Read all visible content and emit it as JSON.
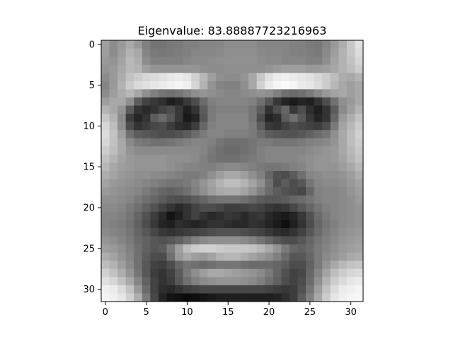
{
  "chart_data": {
    "type": "heatmap",
    "title": "Eigenvalue: 83.88887723216963",
    "colormap": "gray",
    "x_ticks": [
      0,
      5,
      10,
      15,
      20,
      25,
      30
    ],
    "y_ticks": [
      0,
      5,
      10,
      15,
      20,
      25,
      30
    ],
    "grid_shape": [
      32,
      32
    ],
    "grid": [
      [
        0.62,
        0.55,
        0.6,
        0.66,
        0.6,
        0.5,
        0.45,
        0.45,
        0.47,
        0.48,
        0.5,
        0.5,
        0.52,
        0.52,
        0.52,
        0.55,
        0.55,
        0.55,
        0.55,
        0.52,
        0.52,
        0.52,
        0.52,
        0.5,
        0.5,
        0.48,
        0.47,
        0.52,
        0.6,
        0.68,
        0.78,
        0.88
      ],
      [
        0.62,
        0.55,
        0.62,
        0.7,
        0.66,
        0.52,
        0.48,
        0.47,
        0.48,
        0.49,
        0.5,
        0.52,
        0.53,
        0.53,
        0.54,
        0.56,
        0.56,
        0.56,
        0.56,
        0.54,
        0.53,
        0.53,
        0.52,
        0.51,
        0.5,
        0.49,
        0.48,
        0.54,
        0.62,
        0.7,
        0.78,
        0.86
      ],
      [
        0.6,
        0.58,
        0.64,
        0.72,
        0.68,
        0.55,
        0.5,
        0.5,
        0.5,
        0.5,
        0.52,
        0.54,
        0.54,
        0.55,
        0.56,
        0.57,
        0.57,
        0.57,
        0.57,
        0.55,
        0.54,
        0.54,
        0.52,
        0.52,
        0.52,
        0.5,
        0.5,
        0.56,
        0.64,
        0.7,
        0.76,
        0.84
      ],
      [
        0.58,
        0.6,
        0.66,
        0.72,
        0.7,
        0.62,
        0.58,
        0.58,
        0.58,
        0.58,
        0.58,
        0.58,
        0.56,
        0.55,
        0.55,
        0.56,
        0.56,
        0.56,
        0.56,
        0.56,
        0.58,
        0.6,
        0.62,
        0.62,
        0.62,
        0.6,
        0.6,
        0.62,
        0.66,
        0.7,
        0.74,
        0.8
      ],
      [
        0.55,
        0.6,
        0.68,
        0.76,
        0.8,
        0.84,
        0.86,
        0.88,
        0.9,
        0.92,
        0.9,
        0.82,
        0.72,
        0.62,
        0.56,
        0.55,
        0.55,
        0.58,
        0.66,
        0.78,
        0.88,
        0.92,
        0.94,
        0.92,
        0.9,
        0.88,
        0.84,
        0.8,
        0.74,
        0.68,
        0.66,
        0.7
      ],
      [
        0.52,
        0.6,
        0.7,
        0.8,
        0.86,
        0.88,
        0.9,
        0.92,
        0.94,
        0.96,
        0.94,
        0.84,
        0.7,
        0.58,
        0.52,
        0.5,
        0.5,
        0.56,
        0.66,
        0.82,
        0.92,
        0.96,
        0.98,
        0.96,
        0.92,
        0.9,
        0.86,
        0.8,
        0.72,
        0.66,
        0.62,
        0.66
      ],
      [
        0.55,
        0.62,
        0.68,
        0.72,
        0.66,
        0.56,
        0.5,
        0.46,
        0.44,
        0.46,
        0.5,
        0.56,
        0.58,
        0.56,
        0.54,
        0.52,
        0.52,
        0.54,
        0.56,
        0.58,
        0.56,
        0.5,
        0.44,
        0.42,
        0.44,
        0.48,
        0.54,
        0.6,
        0.64,
        0.66,
        0.62,
        0.66
      ],
      [
        0.62,
        0.66,
        0.66,
        0.56,
        0.36,
        0.26,
        0.22,
        0.18,
        0.12,
        0.15,
        0.22,
        0.3,
        0.42,
        0.5,
        0.52,
        0.52,
        0.52,
        0.52,
        0.5,
        0.44,
        0.34,
        0.22,
        0.14,
        0.1,
        0.14,
        0.12,
        0.2,
        0.3,
        0.44,
        0.56,
        0.6,
        0.66
      ],
      [
        0.7,
        0.66,
        0.58,
        0.36,
        0.2,
        0.16,
        0.2,
        0.26,
        0.3,
        0.22,
        0.12,
        0.2,
        0.36,
        0.48,
        0.5,
        0.5,
        0.5,
        0.5,
        0.46,
        0.36,
        0.2,
        0.3,
        0.4,
        0.22,
        0.3,
        0.18,
        0.12,
        0.2,
        0.36,
        0.54,
        0.62,
        0.7
      ],
      [
        0.78,
        0.7,
        0.54,
        0.24,
        0.14,
        0.2,
        0.36,
        0.42,
        0.34,
        0.22,
        0.1,
        0.14,
        0.34,
        0.48,
        0.52,
        0.52,
        0.52,
        0.52,
        0.46,
        0.3,
        0.14,
        0.18,
        0.36,
        0.44,
        0.34,
        0.22,
        0.14,
        0.2,
        0.4,
        0.6,
        0.68,
        0.76
      ],
      [
        0.84,
        0.74,
        0.56,
        0.3,
        0.2,
        0.24,
        0.28,
        0.3,
        0.24,
        0.18,
        0.16,
        0.24,
        0.4,
        0.5,
        0.52,
        0.52,
        0.52,
        0.52,
        0.48,
        0.36,
        0.22,
        0.2,
        0.26,
        0.3,
        0.28,
        0.26,
        0.24,
        0.3,
        0.48,
        0.64,
        0.72,
        0.8
      ],
      [
        0.86,
        0.76,
        0.62,
        0.44,
        0.36,
        0.34,
        0.32,
        0.3,
        0.3,
        0.32,
        0.36,
        0.42,
        0.48,
        0.52,
        0.52,
        0.5,
        0.5,
        0.5,
        0.48,
        0.42,
        0.36,
        0.34,
        0.32,
        0.32,
        0.34,
        0.38,
        0.42,
        0.46,
        0.56,
        0.66,
        0.74,
        0.82
      ],
      [
        0.84,
        0.76,
        0.66,
        0.54,
        0.48,
        0.46,
        0.44,
        0.44,
        0.46,
        0.48,
        0.5,
        0.52,
        0.52,
        0.5,
        0.46,
        0.44,
        0.44,
        0.44,
        0.46,
        0.48,
        0.48,
        0.46,
        0.46,
        0.46,
        0.48,
        0.5,
        0.52,
        0.54,
        0.58,
        0.66,
        0.74,
        0.8
      ],
      [
        0.8,
        0.74,
        0.66,
        0.58,
        0.54,
        0.54,
        0.54,
        0.54,
        0.54,
        0.54,
        0.54,
        0.54,
        0.52,
        0.48,
        0.44,
        0.42,
        0.42,
        0.44,
        0.46,
        0.5,
        0.52,
        0.52,
        0.52,
        0.52,
        0.52,
        0.54,
        0.56,
        0.58,
        0.6,
        0.66,
        0.72,
        0.78
      ],
      [
        0.76,
        0.7,
        0.64,
        0.6,
        0.58,
        0.58,
        0.58,
        0.58,
        0.56,
        0.56,
        0.56,
        0.54,
        0.5,
        0.46,
        0.44,
        0.44,
        0.44,
        0.46,
        0.48,
        0.5,
        0.52,
        0.52,
        0.52,
        0.52,
        0.54,
        0.56,
        0.58,
        0.58,
        0.6,
        0.64,
        0.7,
        0.76
      ],
      [
        0.72,
        0.66,
        0.62,
        0.6,
        0.58,
        0.58,
        0.58,
        0.58,
        0.56,
        0.54,
        0.52,
        0.52,
        0.5,
        0.5,
        0.52,
        0.54,
        0.54,
        0.52,
        0.5,
        0.48,
        0.46,
        0.46,
        0.48,
        0.5,
        0.52,
        0.56,
        0.58,
        0.58,
        0.58,
        0.62,
        0.66,
        0.72
      ],
      [
        0.68,
        0.64,
        0.6,
        0.58,
        0.56,
        0.56,
        0.54,
        0.54,
        0.52,
        0.5,
        0.48,
        0.48,
        0.5,
        0.56,
        0.62,
        0.66,
        0.66,
        0.62,
        0.56,
        0.5,
        0.4,
        0.32,
        0.3,
        0.36,
        0.44,
        0.52,
        0.54,
        0.56,
        0.56,
        0.58,
        0.62,
        0.68
      ],
      [
        0.64,
        0.6,
        0.58,
        0.56,
        0.54,
        0.52,
        0.5,
        0.48,
        0.46,
        0.46,
        0.48,
        0.52,
        0.58,
        0.64,
        0.7,
        0.74,
        0.74,
        0.7,
        0.64,
        0.56,
        0.44,
        0.3,
        0.36,
        0.3,
        0.34,
        0.46,
        0.52,
        0.54,
        0.54,
        0.56,
        0.6,
        0.64
      ],
      [
        0.6,
        0.58,
        0.56,
        0.54,
        0.52,
        0.48,
        0.44,
        0.4,
        0.38,
        0.4,
        0.44,
        0.5,
        0.56,
        0.62,
        0.66,
        0.68,
        0.68,
        0.64,
        0.58,
        0.5,
        0.42,
        0.36,
        0.32,
        0.3,
        0.28,
        0.4,
        0.5,
        0.52,
        0.52,
        0.54,
        0.58,
        0.62
      ],
      [
        0.56,
        0.56,
        0.54,
        0.52,
        0.48,
        0.44,
        0.4,
        0.36,
        0.32,
        0.3,
        0.32,
        0.36,
        0.4,
        0.44,
        0.46,
        0.46,
        0.46,
        0.44,
        0.4,
        0.36,
        0.34,
        0.34,
        0.36,
        0.4,
        0.42,
        0.46,
        0.5,
        0.52,
        0.52,
        0.54,
        0.56,
        0.6
      ],
      [
        0.54,
        0.54,
        0.52,
        0.48,
        0.44,
        0.38,
        0.32,
        0.26,
        0.2,
        0.16,
        0.2,
        0.26,
        0.3,
        0.3,
        0.28,
        0.24,
        0.24,
        0.26,
        0.28,
        0.26,
        0.22,
        0.2,
        0.22,
        0.28,
        0.34,
        0.4,
        0.46,
        0.5,
        0.52,
        0.54,
        0.56,
        0.58
      ],
      [
        0.52,
        0.52,
        0.5,
        0.46,
        0.4,
        0.32,
        0.24,
        0.16,
        0.08,
        0.12,
        0.2,
        0.26,
        0.2,
        0.16,
        0.18,
        0.22,
        0.2,
        0.16,
        0.2,
        0.22,
        0.16,
        0.12,
        0.1,
        0.14,
        0.22,
        0.32,
        0.42,
        0.48,
        0.52,
        0.54,
        0.56,
        0.58
      ],
      [
        0.52,
        0.5,
        0.48,
        0.44,
        0.38,
        0.3,
        0.22,
        0.14,
        0.12,
        0.18,
        0.16,
        0.14,
        0.16,
        0.2,
        0.2,
        0.18,
        0.16,
        0.16,
        0.2,
        0.18,
        0.14,
        0.1,
        0.06,
        0.12,
        0.2,
        0.3,
        0.4,
        0.46,
        0.5,
        0.54,
        0.56,
        0.58
      ],
      [
        0.54,
        0.52,
        0.5,
        0.46,
        0.4,
        0.34,
        0.28,
        0.22,
        0.2,
        0.22,
        0.24,
        0.26,
        0.28,
        0.3,
        0.32,
        0.32,
        0.32,
        0.3,
        0.28,
        0.26,
        0.22,
        0.18,
        0.16,
        0.2,
        0.26,
        0.34,
        0.42,
        0.48,
        0.52,
        0.56,
        0.58,
        0.6
      ],
      [
        0.58,
        0.56,
        0.52,
        0.48,
        0.42,
        0.38,
        0.34,
        0.32,
        0.34,
        0.38,
        0.44,
        0.5,
        0.54,
        0.56,
        0.56,
        0.56,
        0.56,
        0.54,
        0.5,
        0.46,
        0.4,
        0.34,
        0.3,
        0.3,
        0.34,
        0.4,
        0.46,
        0.5,
        0.54,
        0.58,
        0.6,
        0.62
      ],
      [
        0.62,
        0.6,
        0.56,
        0.5,
        0.44,
        0.38,
        0.34,
        0.36,
        0.48,
        0.62,
        0.74,
        0.8,
        0.82,
        0.82,
        0.8,
        0.78,
        0.78,
        0.78,
        0.76,
        0.72,
        0.66,
        0.58,
        0.48,
        0.4,
        0.38,
        0.42,
        0.48,
        0.52,
        0.56,
        0.6,
        0.62,
        0.64
      ],
      [
        0.68,
        0.64,
        0.58,
        0.52,
        0.44,
        0.36,
        0.3,
        0.3,
        0.44,
        0.6,
        0.66,
        0.62,
        0.6,
        0.64,
        0.7,
        0.72,
        0.72,
        0.68,
        0.64,
        0.6,
        0.56,
        0.5,
        0.42,
        0.34,
        0.34,
        0.4,
        0.48,
        0.54,
        0.58,
        0.62,
        0.66,
        0.68
      ],
      [
        0.74,
        0.7,
        0.62,
        0.54,
        0.44,
        0.34,
        0.26,
        0.24,
        0.3,
        0.4,
        0.46,
        0.44,
        0.42,
        0.44,
        0.46,
        0.46,
        0.46,
        0.44,
        0.42,
        0.42,
        0.42,
        0.4,
        0.36,
        0.3,
        0.3,
        0.38,
        0.48,
        0.58,
        0.66,
        0.72,
        0.76,
        0.78
      ],
      [
        0.82,
        0.76,
        0.68,
        0.58,
        0.46,
        0.34,
        0.24,
        0.2,
        0.26,
        0.36,
        0.48,
        0.56,
        0.62,
        0.66,
        0.66,
        0.64,
        0.62,
        0.6,
        0.58,
        0.54,
        0.48,
        0.4,
        0.32,
        0.26,
        0.28,
        0.4,
        0.52,
        0.64,
        0.74,
        0.8,
        0.84,
        0.86
      ],
      [
        0.88,
        0.84,
        0.76,
        0.66,
        0.52,
        0.38,
        0.26,
        0.2,
        0.24,
        0.34,
        0.44,
        0.5,
        0.54,
        0.56,
        0.58,
        0.58,
        0.58,
        0.56,
        0.54,
        0.5,
        0.44,
        0.38,
        0.3,
        0.26,
        0.3,
        0.42,
        0.56,
        0.7,
        0.8,
        0.86,
        0.9,
        0.92
      ],
      [
        0.94,
        0.92,
        0.86,
        0.76,
        0.6,
        0.42,
        0.26,
        0.18,
        0.16,
        0.2,
        0.24,
        0.26,
        0.28,
        0.28,
        0.28,
        0.28,
        0.28,
        0.28,
        0.28,
        0.28,
        0.26,
        0.24,
        0.22,
        0.24,
        0.32,
        0.46,
        0.62,
        0.76,
        0.86,
        0.92,
        0.94,
        0.96
      ],
      [
        0.96,
        0.94,
        0.9,
        0.82,
        0.68,
        0.48,
        0.28,
        0.14,
        0.08,
        0.06,
        0.04,
        0.06,
        0.08,
        0.1,
        0.12,
        0.12,
        0.12,
        0.12,
        0.12,
        0.12,
        0.12,
        0.14,
        0.18,
        0.24,
        0.36,
        0.5,
        0.66,
        0.8,
        0.9,
        0.94,
        0.96,
        0.97
      ]
    ]
  }
}
